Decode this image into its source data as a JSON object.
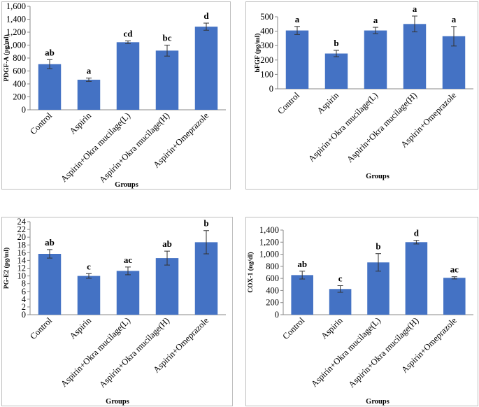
{
  "colors": {
    "bar": "#4472C4",
    "frame": "#bfbfbf",
    "axis": "#888888",
    "error": "#333333"
  },
  "chart_data": [
    {
      "type": "bar",
      "title": "",
      "ylabel": "PDGF-A (pg/ml)",
      "xlabel": "Groups",
      "ylim": [
        0,
        1600
      ],
      "yticks": [
        "0",
        "200",
        "400",
        "600",
        "800",
        "1,000",
        "1,200",
        "1,400",
        "1,600"
      ],
      "ytick_values": [
        0,
        200,
        400,
        600,
        800,
        1000,
        1200,
        1400,
        1600
      ],
      "categories": [
        "Control",
        "Aspirin",
        "Aspirin+Okra mucilage(L)",
        "Aspirin+Okra mucilage(H)",
        "Aspirin+Omeprazole"
      ],
      "values": [
        705,
        465,
        1045,
        915,
        1285
      ],
      "errors": [
        70,
        25,
        20,
        85,
        55
      ],
      "labels": [
        "ab",
        "a",
        "cd",
        "bc",
        "d"
      ],
      "grid": false
    },
    {
      "type": "bar",
      "title": "",
      "ylabel": "bFGF (pg/ml)",
      "xlabel": "Groups",
      "ylim": [
        0,
        500
      ],
      "yticks": [
        "0",
        "100",
        "200",
        "300",
        "400",
        "500"
      ],
      "ytick_values": [
        0,
        100,
        200,
        300,
        400,
        500
      ],
      "categories": [
        "Control",
        "Aspirin",
        "Aspirin+Okra mucilage(L)",
        "Aspirin+Okra mucilage(H)",
        "Aspirin+Omeprazole"
      ],
      "values": [
        405,
        245,
        405,
        450,
        365
      ],
      "errors": [
        28,
        22,
        22,
        55,
        68
      ],
      "labels": [
        "a",
        "b",
        "a",
        "a",
        "a"
      ],
      "grid": false
    },
    {
      "type": "bar",
      "title": "",
      "ylabel": "PG-E2 (pg/ml)",
      "xlabel": "Groups",
      "ylim": [
        0,
        24
      ],
      "yticks": [
        "0",
        "2",
        "4",
        "6",
        "8",
        "10",
        "12",
        "14",
        "16",
        "18",
        "20",
        "22",
        "24"
      ],
      "ytick_values": [
        0,
        2,
        4,
        6,
        8,
        10,
        12,
        14,
        16,
        18,
        20,
        22,
        24
      ],
      "categories": [
        "Control",
        "Aspirin",
        "Aspirin+Okra mucilage(L)",
        "Aspirin+Okra mucilage(H)",
        "Aspirin+Omeprazole"
      ],
      "values": [
        15.7,
        10,
        11.3,
        14.6,
        18.7
      ],
      "errors": [
        1.1,
        0.6,
        1.0,
        1.8,
        3.0
      ],
      "labels": [
        "ab",
        "c",
        "ac",
        "ab",
        "b"
      ],
      "grid": false
    },
    {
      "type": "bar",
      "title": "",
      "ylabel": "COX-1 (ng/dl)",
      "xlabel": "Groups",
      "ylim": [
        0,
        1400
      ],
      "yticks": [
        "0",
        "200",
        "400",
        "600",
        "800",
        "1,000",
        "1,200",
        "1,400"
      ],
      "ytick_values": [
        0,
        200,
        400,
        600,
        800,
        1000,
        1200,
        1400
      ],
      "categories": [
        "Control",
        "Aspirin",
        "Aspirin+Okra mucilage(L)",
        "Aspirin+Okra mucilage(H)",
        "Aspirin+Omeprazole"
      ],
      "values": [
        655,
        425,
        865,
        1200,
        610
      ],
      "errors": [
        65,
        55,
        145,
        30,
        18
      ],
      "labels": [
        "ab",
        "c",
        "b",
        "d",
        "ac"
      ],
      "grid": false
    }
  ]
}
